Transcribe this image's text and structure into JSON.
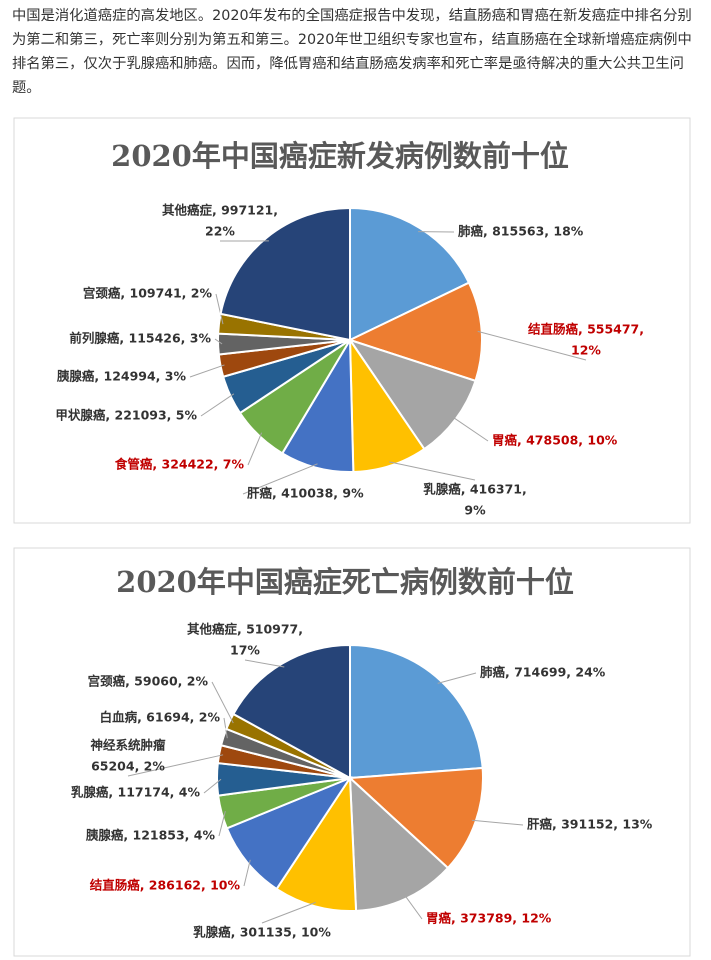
{
  "article": {
    "paragraph": "中国是消化道癌症的高发地区。2020年发布的全国癌症报告中发现，结直肠癌和胃癌在新发癌症中排名分别为第二和第三，死亡率则分别为第五和第三。2020年世卫组织专家也宣布，结直肠癌在全球新增癌症病例中排名第三，仅次于乳腺癌和肺癌。因而，降低胃癌和结直肠癌发病率和死亡率是亟待解决的重大公共卫生问题。"
  },
  "chart_data": [
    {
      "type": "pie",
      "title": "2020年中国癌症新发病例数前十位",
      "labels": [
        [
          "肺癌, 815563, 18%"
        ],
        [
          "结直肠癌, 555477,",
          "12%"
        ],
        [
          "胃癌, 478508, 10%"
        ],
        [
          "乳腺癌, 416371,",
          "9%"
        ],
        [
          "肝癌, 410038, 9%"
        ],
        [
          "食管癌, 324422, 7%"
        ],
        [
          "甲状腺癌, 221093, 5%"
        ],
        [
          "胰腺癌, 124994, 3%"
        ],
        [
          "前列腺癌, 115426, 3%"
        ],
        [
          "宫颈癌, 109741, 2%"
        ],
        [
          "其他癌症, 997121,",
          "22%"
        ]
      ],
      "values": [
        815563,
        555477,
        478508,
        416371,
        410038,
        324422,
        221093,
        124994,
        115426,
        109741,
        997121
      ],
      "colors": [
        "#5b9bd5",
        "#ed7d31",
        "#a5a5a5",
        "#ffc000",
        "#4472c4",
        "#70ad47",
        "#255e91",
        "#9e480e",
        "#636363",
        "#997300",
        "#264478"
      ],
      "label_colors": [
        "#333333",
        "#c00000",
        "#c00000",
        "#333333",
        "#333333",
        "#c00000",
        "#333333",
        "#333333",
        "#333333",
        "#333333",
        "#333333"
      ]
    },
    {
      "type": "pie",
      "title": "2020年中国癌症死亡病例数前十位",
      "labels": [
        [
          "肺癌, 714699, 24%"
        ],
        [
          "肝癌, 391152, 13%"
        ],
        [
          "胃癌, 373789, 12%"
        ],
        [
          "乳腺癌, 301135, 10%"
        ],
        [
          "结直肠癌, 286162, 10%"
        ],
        [
          "胰腺癌, 121853, 4%"
        ],
        [
          "乳腺癌, 117174, 4%"
        ],
        [
          "神经系统肿瘤",
          "65204, 2%"
        ],
        [
          "白血病, 61694, 2%"
        ],
        [
          "宫颈癌, 59060, 2%"
        ],
        [
          "其他癌症, 510977,",
          "17%"
        ]
      ],
      "values": [
        714699,
        391152,
        373789,
        301135,
        286162,
        121853,
        117174,
        65204,
        61694,
        59060,
        510977
      ],
      "colors": [
        "#5b9bd5",
        "#ed7d31",
        "#a5a5a5",
        "#ffc000",
        "#4472c4",
        "#70ad47",
        "#255e91",
        "#9e480e",
        "#636363",
        "#997300",
        "#264478"
      ],
      "label_colors": [
        "#333333",
        "#333333",
        "#c00000",
        "#333333",
        "#c00000",
        "#333333",
        "#333333",
        "#333333",
        "#333333",
        "#333333",
        "#333333"
      ]
    }
  ]
}
